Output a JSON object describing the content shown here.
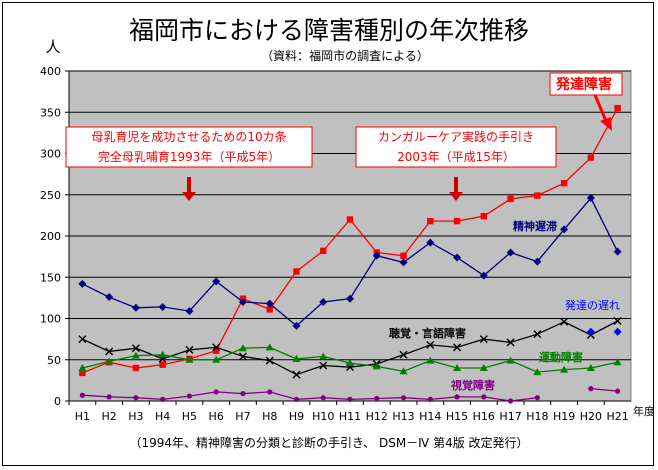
{
  "chart_data": {
    "type": "line",
    "title": "福岡市における障害種別の年次推移",
    "subtitle": "（資料：福岡市の調査による）",
    "ylabel": "人",
    "xlabel": "年度",
    "footnote": "（1994年、精神障害の分類と診断の手引き、 DSM－Ⅳ 第4版 改定発行）",
    "ylim": [
      0,
      400
    ],
    "yticks": [
      0,
      50,
      100,
      150,
      200,
      250,
      300,
      350,
      400
    ],
    "grid": true,
    "categories": [
      "H1",
      "H2",
      "H3",
      "H4",
      "H5",
      "H6",
      "H7",
      "H8",
      "H9",
      "H10",
      "H11",
      "H12",
      "H13",
      "H14",
      "H15",
      "H16",
      "H17",
      "H18",
      "H19",
      "H20",
      "H21"
    ],
    "series": [
      {
        "name": "発達障害",
        "color": "#ff0000",
        "marker": "square",
        "values": [
          34,
          47,
          40,
          44,
          51,
          61,
          124,
          111,
          157,
          182,
          220,
          180,
          176,
          218,
          218,
          224,
          245,
          249,
          264,
          295,
          355
        ]
      },
      {
        "name": "精神遅滞",
        "color": "#000080",
        "marker": "diamond",
        "values": [
          142,
          126,
          113,
          114,
          109,
          145,
          120,
          118,
          91,
          120,
          124,
          176,
          168,
          192,
          174,
          152,
          180,
          169,
          208,
          246,
          181
        ]
      },
      {
        "name": "聴覚・言語障害",
        "color": "#000000",
        "marker": "cross",
        "values": [
          75,
          60,
          64,
          51,
          62,
          65,
          54,
          49,
          32,
          43,
          41,
          45,
          56,
          68,
          65,
          75,
          71,
          81,
          96,
          80,
          97
        ]
      },
      {
        "name": "運動障害",
        "color": "#008000",
        "marker": "triangle",
        "values": [
          40,
          48,
          55,
          56,
          50,
          50,
          64,
          65,
          51,
          54,
          46,
          42,
          36,
          49,
          40,
          40,
          49,
          35,
          38,
          40,
          47
        ]
      },
      {
        "name": "視覚障害",
        "color": "#800080",
        "marker": "circle",
        "values": [
          7,
          5,
          4,
          2,
          6,
          11,
          9,
          11,
          2,
          4,
          2,
          3,
          4,
          2,
          5,
          5,
          0,
          4,
          null,
          15,
          12
        ]
      },
      {
        "name": "発達の遅れ",
        "color": "#0000ff",
        "marker": "diamond",
        "lineless": true,
        "values": [
          null,
          null,
          null,
          null,
          null,
          null,
          null,
          null,
          null,
          null,
          null,
          null,
          null,
          null,
          null,
          null,
          null,
          null,
          null,
          84,
          84
        ]
      }
    ],
    "annotations": [
      {
        "text": [
          "母乳育児を成功させるための10カ条",
          "完全母乳哺育1993年（平成5年）"
        ],
        "category": "H5"
      },
      {
        "text": [
          "カンガルーケア実践の手引き",
          "2003年（平成15年）"
        ],
        "category": "H15"
      }
    ]
  }
}
